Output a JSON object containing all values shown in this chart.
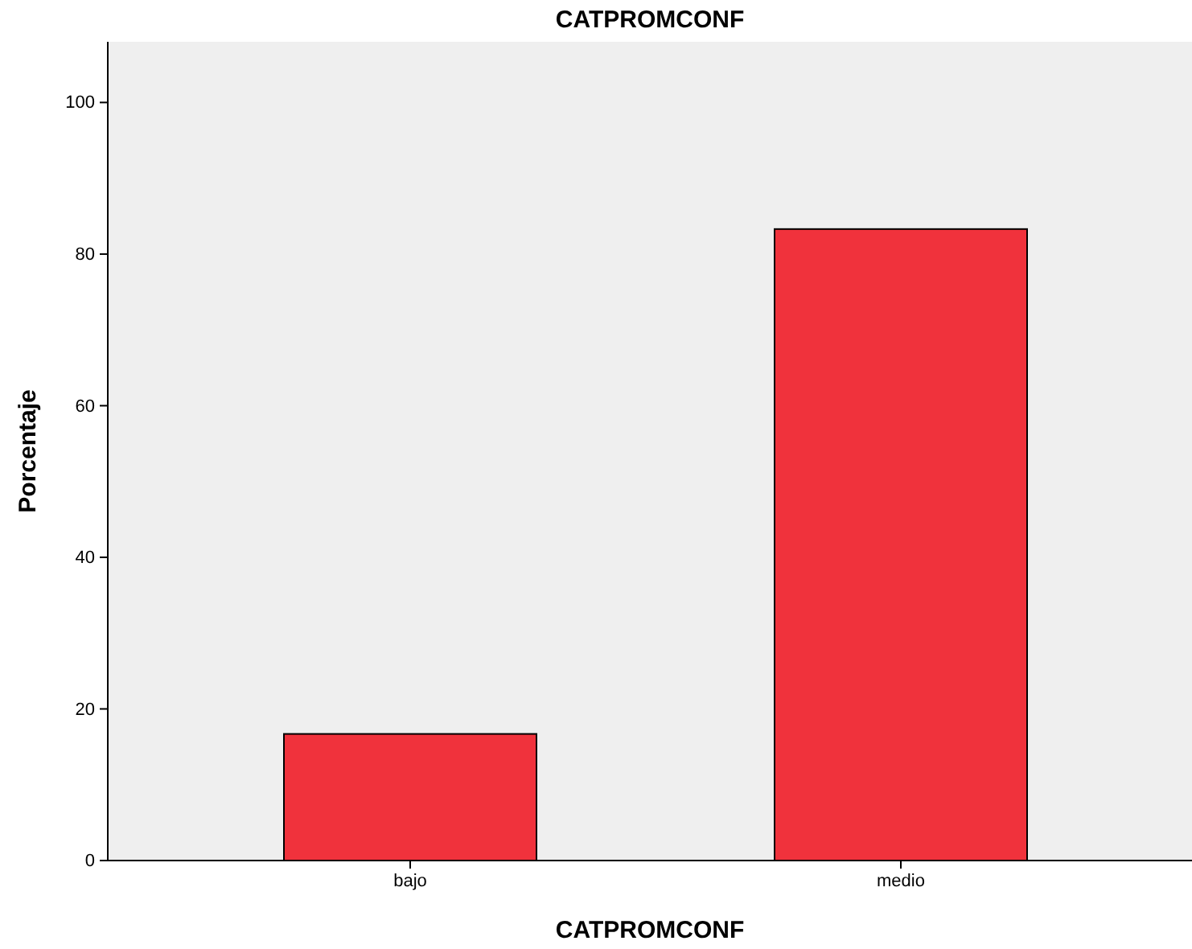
{
  "chart_data": {
    "type": "bar",
    "title": "CATPROMCONF",
    "xlabel": "CATPROMCONF",
    "ylabel": "Porcentaje",
    "categories": [
      "bajo",
      "medio"
    ],
    "values": [
      16.7,
      83.3
    ],
    "color": "#f0323c",
    "ylim": [
      0,
      108
    ],
    "yticks": [
      0,
      20,
      40,
      60,
      80,
      100
    ],
    "grid": false,
    "legend": false
  }
}
